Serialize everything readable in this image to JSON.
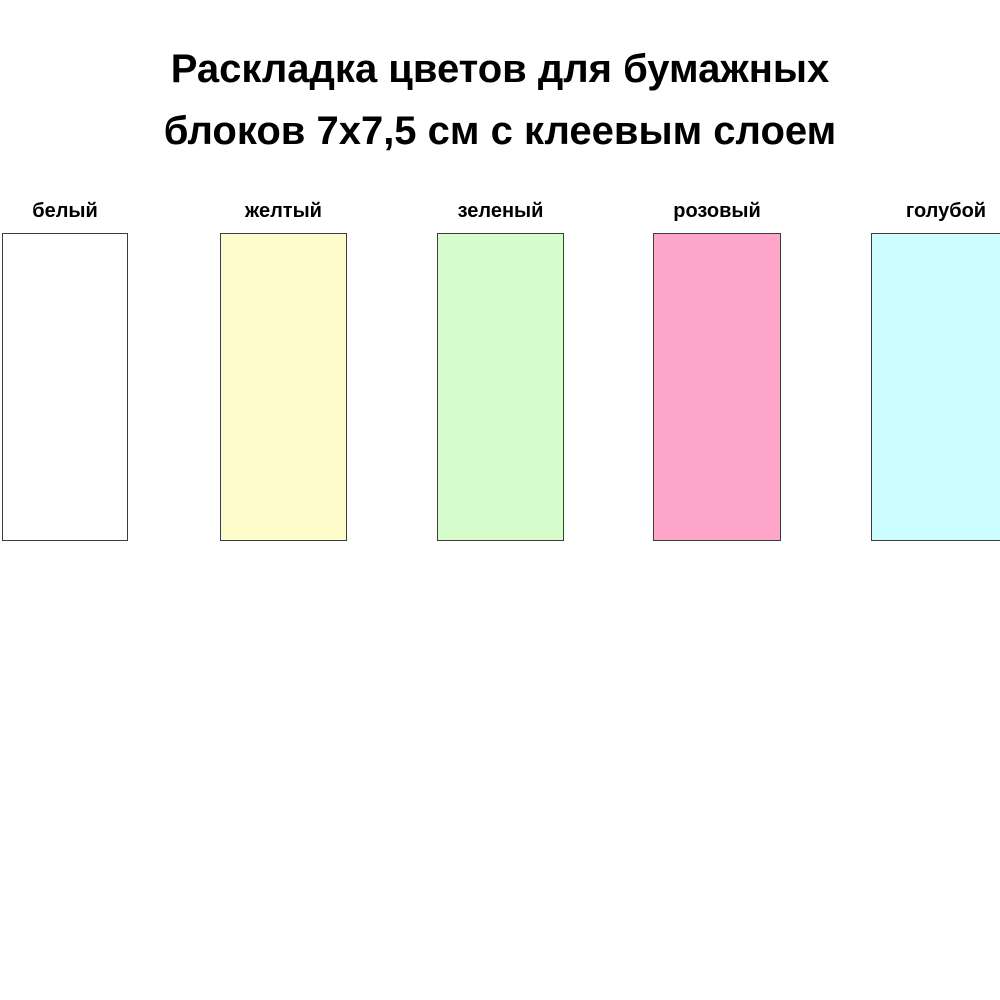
{
  "title": {
    "line1": "Раскладка цветов для бумажных",
    "line2": "блоков 7х7,5 см с клеевым слоем"
  },
  "swatches": [
    {
      "label": "белый",
      "color": "#ffffff"
    },
    {
      "label": "желтый",
      "color": "#fffccc"
    },
    {
      "label": "зеленый",
      "color": "#d7fdcc"
    },
    {
      "label": "розовый",
      "color": "#ffa6cb"
    },
    {
      "label": "голубой",
      "color": "#ccfdff"
    }
  ],
  "swatch_border_color": "#3d3d3d"
}
